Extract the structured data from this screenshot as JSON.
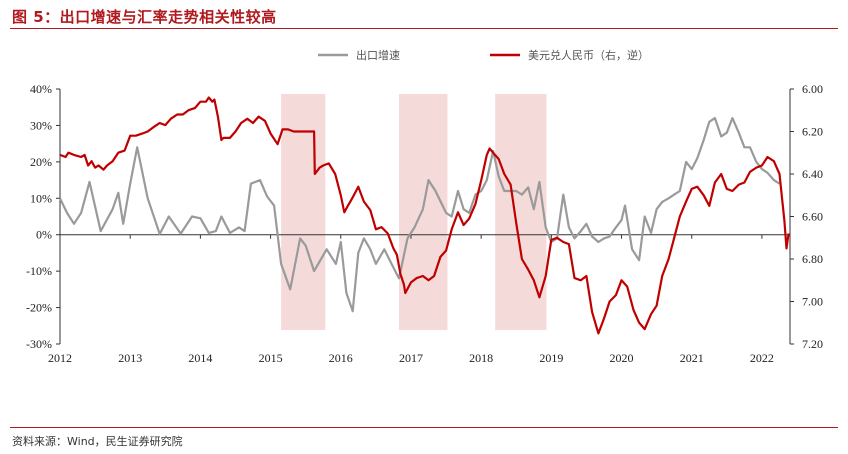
{
  "title": "图 5：出口增速与汇率走势相关性较高",
  "source": "资料来源：Wind，民生证券研究院",
  "colors": {
    "export": "#9a9a9a",
    "usdcny": "#c00000",
    "shade": "#f5dada",
    "title": "#b01a1f"
  },
  "chart_data": {
    "type": "line",
    "grid": false,
    "legend_position": "top",
    "x_ticks": [
      "2012",
      "2013",
      "2014",
      "2015",
      "2016",
      "2017",
      "2018",
      "2019",
      "2020",
      "2021",
      "2022"
    ],
    "xlim": [
      2012.0,
      2022.4
    ],
    "y_left": {
      "ticks": [
        "40%",
        "30%",
        "20%",
        "10%",
        "0%",
        "-10%",
        "-20%",
        "-30%"
      ],
      "lim": [
        -0.3,
        0.4
      ],
      "format": "percent"
    },
    "y_right": {
      "ticks": [
        "6.00",
        "6.20",
        "6.40",
        "6.60",
        "6.80",
        "7.00",
        "7.20"
      ],
      "lim": [
        6.0,
        7.2
      ],
      "inverted": true
    },
    "shaded_periods": [
      [
        2015.15,
        2015.78
      ],
      [
        2016.83,
        2017.52
      ],
      [
        2018.2,
        2018.93
      ]
    ],
    "series": [
      {
        "name": "出口增速",
        "axis": "left",
        "points": [
          [
            2012.0,
            0.1
          ],
          [
            2012.1,
            0.06
          ],
          [
            2012.2,
            0.03
          ],
          [
            2012.3,
            0.06
          ],
          [
            2012.42,
            0.145
          ],
          [
            2012.58,
            0.01
          ],
          [
            2012.75,
            0.07
          ],
          [
            2012.83,
            0.115
          ],
          [
            2012.9,
            0.03
          ],
          [
            2013.0,
            0.14
          ],
          [
            2013.1,
            0.24
          ],
          [
            2013.25,
            0.1
          ],
          [
            2013.42,
            0.002
          ],
          [
            2013.55,
            0.05
          ],
          [
            2013.72,
            0.003
          ],
          [
            2013.88,
            0.05
          ],
          [
            2014.0,
            0.045
          ],
          [
            2014.12,
            0.005
          ],
          [
            2014.22,
            0.01
          ],
          [
            2014.3,
            0.05
          ],
          [
            2014.42,
            0.005
          ],
          [
            2014.55,
            0.02
          ],
          [
            2014.63,
            0.01
          ],
          [
            2014.72,
            0.14
          ],
          [
            2014.85,
            0.15
          ],
          [
            2014.95,
            0.105
          ],
          [
            2015.05,
            0.08
          ],
          [
            2015.15,
            -0.08
          ],
          [
            2015.28,
            -0.15
          ],
          [
            2015.42,
            -0.01
          ],
          [
            2015.5,
            -0.03
          ],
          [
            2015.62,
            -0.1
          ],
          [
            2015.8,
            -0.04
          ],
          [
            2015.93,
            -0.08
          ],
          [
            2016.0,
            -0.02
          ],
          [
            2016.08,
            -0.16
          ],
          [
            2016.17,
            -0.21
          ],
          [
            2016.25,
            -0.05
          ],
          [
            2016.33,
            -0.01
          ],
          [
            2016.42,
            -0.04
          ],
          [
            2016.5,
            -0.08
          ],
          [
            2016.62,
            -0.04
          ],
          [
            2016.75,
            -0.09
          ],
          [
            2016.83,
            -0.12
          ],
          [
            2016.95,
            -0.01
          ],
          [
            2017.05,
            0.02
          ],
          [
            2017.17,
            0.07
          ],
          [
            2017.25,
            0.15
          ],
          [
            2017.35,
            0.12
          ],
          [
            2017.5,
            0.06
          ],
          [
            2017.58,
            0.05
          ],
          [
            2017.67,
            0.12
          ],
          [
            2017.75,
            0.07
          ],
          [
            2017.83,
            0.06
          ],
          [
            2017.92,
            0.11
          ],
          [
            2018.0,
            0.12
          ],
          [
            2018.08,
            0.15
          ],
          [
            2018.17,
            0.23
          ],
          [
            2018.25,
            0.16
          ],
          [
            2018.33,
            0.12
          ],
          [
            2018.5,
            0.12
          ],
          [
            2018.58,
            0.11
          ],
          [
            2018.67,
            0.13
          ],
          [
            2018.75,
            0.07
          ],
          [
            2018.83,
            0.145
          ],
          [
            2018.92,
            0.02
          ],
          [
            2019.0,
            -0.02
          ],
          [
            2019.08,
            -0.01
          ],
          [
            2019.17,
            0.11
          ],
          [
            2019.25,
            0.02
          ],
          [
            2019.33,
            -0.01
          ],
          [
            2019.42,
            0.01
          ],
          [
            2019.5,
            0.03
          ],
          [
            2019.58,
            -0.005
          ],
          [
            2019.67,
            -0.02
          ],
          [
            2019.75,
            -0.01
          ],
          [
            2019.83,
            -0.005
          ],
          [
            2019.92,
            0.02
          ],
          [
            2020.0,
            0.04
          ],
          [
            2020.05,
            0.08
          ],
          [
            2020.15,
            -0.04
          ],
          [
            2020.25,
            -0.07
          ],
          [
            2020.33,
            0.05
          ],
          [
            2020.42,
            0.005
          ],
          [
            2020.5,
            0.07
          ],
          [
            2020.58,
            0.09
          ],
          [
            2020.67,
            0.1
          ],
          [
            2020.75,
            0.11
          ],
          [
            2020.83,
            0.12
          ],
          [
            2020.92,
            0.2
          ],
          [
            2021.0,
            0.18
          ],
          [
            2021.08,
            0.21
          ],
          [
            2021.17,
            0.26
          ],
          [
            2021.25,
            0.31
          ],
          [
            2021.33,
            0.32
          ],
          [
            2021.42,
            0.27
          ],
          [
            2021.5,
            0.28
          ],
          [
            2021.58,
            0.32
          ],
          [
            2021.67,
            0.28
          ],
          [
            2021.75,
            0.24
          ],
          [
            2021.83,
            0.24
          ],
          [
            2021.92,
            0.2
          ],
          [
            2022.0,
            0.18
          ],
          [
            2022.08,
            0.17
          ],
          [
            2022.17,
            0.15
          ],
          [
            2022.25,
            0.14
          ]
        ]
      },
      {
        "name": "美元兑人民币（右，逆）",
        "axis": "right",
        "points": [
          [
            2012.0,
            6.31
          ],
          [
            2012.08,
            6.32
          ],
          [
            2012.12,
            6.3
          ],
          [
            2012.2,
            6.31
          ],
          [
            2012.3,
            6.32
          ],
          [
            2012.35,
            6.31
          ],
          [
            2012.4,
            6.36
          ],
          [
            2012.45,
            6.34
          ],
          [
            2012.5,
            6.37
          ],
          [
            2012.55,
            6.36
          ],
          [
            2012.62,
            6.38
          ],
          [
            2012.67,
            6.36
          ],
          [
            2012.75,
            6.34
          ],
          [
            2012.83,
            6.3
          ],
          [
            2012.92,
            6.29
          ],
          [
            2013.0,
            6.22
          ],
          [
            2013.08,
            6.22
          ],
          [
            2013.17,
            6.21
          ],
          [
            2013.25,
            6.2
          ],
          [
            2013.33,
            6.18
          ],
          [
            2013.42,
            6.16
          ],
          [
            2013.5,
            6.17
          ],
          [
            2013.58,
            6.14
          ],
          [
            2013.67,
            6.12
          ],
          [
            2013.75,
            6.12
          ],
          [
            2013.83,
            6.1
          ],
          [
            2013.92,
            6.09
          ],
          [
            2014.0,
            6.06
          ],
          [
            2014.08,
            6.06
          ],
          [
            2014.12,
            6.04
          ],
          [
            2014.17,
            6.06
          ],
          [
            2014.2,
            6.05
          ],
          [
            2014.25,
            6.13
          ],
          [
            2014.3,
            6.24
          ],
          [
            2014.33,
            6.23
          ],
          [
            2014.42,
            6.23
          ],
          [
            2014.5,
            6.2
          ],
          [
            2014.58,
            6.16
          ],
          [
            2014.67,
            6.14
          ],
          [
            2014.75,
            6.16
          ],
          [
            2014.83,
            6.13
          ],
          [
            2014.92,
            6.15
          ],
          [
            2015.0,
            6.21
          ],
          [
            2015.1,
            6.26
          ],
          [
            2015.17,
            6.19
          ],
          [
            2015.25,
            6.19
          ],
          [
            2015.33,
            6.2
          ],
          [
            2015.42,
            6.2
          ],
          [
            2015.5,
            6.2
          ],
          [
            2015.58,
            6.2
          ],
          [
            2015.62,
            6.2
          ],
          [
            2015.63,
            6.4
          ],
          [
            2015.7,
            6.37
          ],
          [
            2015.75,
            6.36
          ],
          [
            2015.83,
            6.35
          ],
          [
            2015.92,
            6.4
          ],
          [
            2016.0,
            6.5
          ],
          [
            2016.05,
            6.58
          ],
          [
            2016.1,
            6.55
          ],
          [
            2016.17,
            6.51
          ],
          [
            2016.25,
            6.46
          ],
          [
            2016.33,
            6.53
          ],
          [
            2016.42,
            6.57
          ],
          [
            2016.5,
            6.66
          ],
          [
            2016.58,
            6.65
          ],
          [
            2016.67,
            6.68
          ],
          [
            2016.75,
            6.75
          ],
          [
            2016.8,
            6.78
          ],
          [
            2016.85,
            6.87
          ],
          [
            2016.9,
            6.92
          ],
          [
            2016.92,
            6.96
          ],
          [
            2017.0,
            6.91
          ],
          [
            2017.08,
            6.89
          ],
          [
            2017.17,
            6.88
          ],
          [
            2017.25,
            6.9
          ],
          [
            2017.33,
            6.88
          ],
          [
            2017.42,
            6.79
          ],
          [
            2017.5,
            6.76
          ],
          [
            2017.58,
            6.66
          ],
          [
            2017.67,
            6.58
          ],
          [
            2017.75,
            6.64
          ],
          [
            2017.83,
            6.61
          ],
          [
            2017.92,
            6.54
          ],
          [
            2018.0,
            6.43
          ],
          [
            2018.08,
            6.31
          ],
          [
            2018.12,
            6.28
          ],
          [
            2018.17,
            6.3
          ],
          [
            2018.25,
            6.33
          ],
          [
            2018.33,
            6.4
          ],
          [
            2018.42,
            6.45
          ],
          [
            2018.5,
            6.63
          ],
          [
            2018.58,
            6.8
          ],
          [
            2018.67,
            6.85
          ],
          [
            2018.75,
            6.9
          ],
          [
            2018.83,
            6.98
          ],
          [
            2018.92,
            6.88
          ],
          [
            2019.0,
            6.71
          ],
          [
            2019.08,
            6.7
          ],
          [
            2019.17,
            6.72
          ],
          [
            2019.25,
            6.73
          ],
          [
            2019.33,
            6.89
          ],
          [
            2019.42,
            6.9
          ],
          [
            2019.5,
            6.88
          ],
          [
            2019.58,
            7.05
          ],
          [
            2019.67,
            7.15
          ],
          [
            2019.75,
            7.08
          ],
          [
            2019.83,
            7.0
          ],
          [
            2019.92,
            6.97
          ],
          [
            2020.0,
            6.9
          ],
          [
            2020.08,
            6.93
          ],
          [
            2020.17,
            7.04
          ],
          [
            2020.25,
            7.1
          ],
          [
            2020.33,
            7.13
          ],
          [
            2020.42,
            7.06
          ],
          [
            2020.5,
            7.02
          ],
          [
            2020.58,
            6.88
          ],
          [
            2020.67,
            6.8
          ],
          [
            2020.75,
            6.7
          ],
          [
            2020.83,
            6.6
          ],
          [
            2020.92,
            6.53
          ],
          [
            2021.0,
            6.47
          ],
          [
            2021.08,
            6.46
          ],
          [
            2021.17,
            6.5
          ],
          [
            2021.25,
            6.55
          ],
          [
            2021.33,
            6.44
          ],
          [
            2021.42,
            6.4
          ],
          [
            2021.5,
            6.47
          ],
          [
            2021.58,
            6.48
          ],
          [
            2021.67,
            6.45
          ],
          [
            2021.75,
            6.44
          ],
          [
            2021.83,
            6.39
          ],
          [
            2021.92,
            6.37
          ],
          [
            2022.0,
            6.36
          ],
          [
            2022.08,
            6.32
          ],
          [
            2022.17,
            6.34
          ],
          [
            2022.25,
            6.4
          ],
          [
            2022.32,
            6.62
          ],
          [
            2022.35,
            6.75
          ],
          [
            2022.38,
            6.68
          ]
        ]
      }
    ]
  }
}
